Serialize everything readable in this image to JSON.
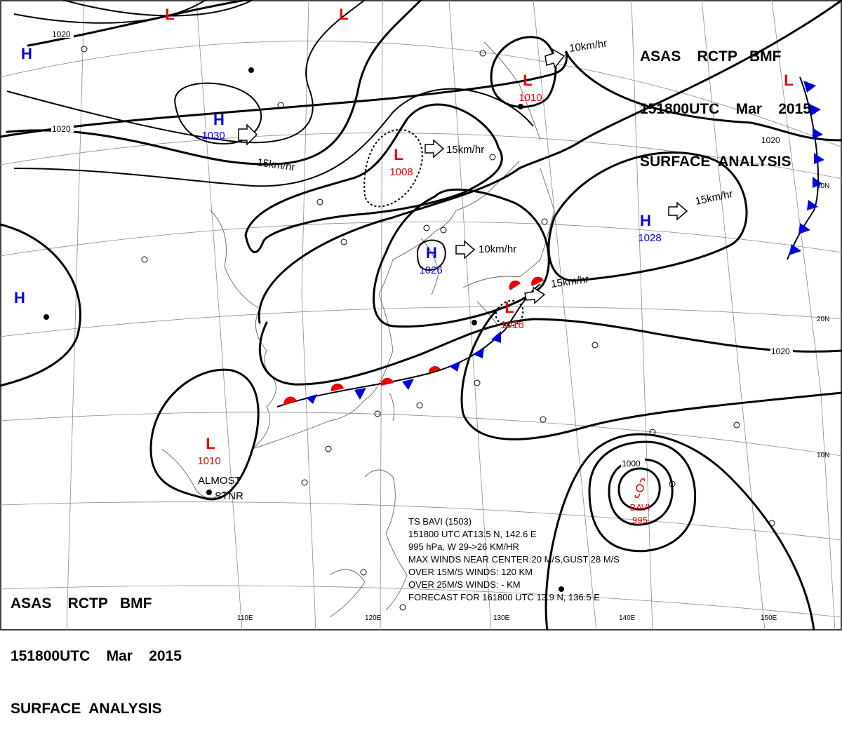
{
  "header_top": {
    "line1": "ASAS    RCTP   BMF",
    "line2": "151800UTC    Mar    2015",
    "line3": "SURFACE  ANALYSIS"
  },
  "header_bottom": {
    "line1": "ASAS    RCTP   BMF",
    "line2": "151800UTC    Mar    2015",
    "line3": "SURFACE  ANALYSIS"
  },
  "colors": {
    "high": "#0000dd",
    "low": "#ee0000",
    "isobar": "#000000",
    "warm_front": "#ee0000",
    "cold_front": "#0000dd"
  },
  "pressure_centers": [
    {
      "type": "H",
      "value": "1030",
      "color": "#0000dd"
    },
    {
      "type": "H",
      "value": "1026",
      "color": "#0000dd"
    },
    {
      "type": "H",
      "value": "1028",
      "color": "#0000dd"
    },
    {
      "type": "H",
      "value": "",
      "color": "#0000dd"
    },
    {
      "type": "H",
      "value": "",
      "color": "#0000dd"
    },
    {
      "type": "L",
      "value": "1008",
      "color": "#ee0000"
    },
    {
      "type": "L",
      "value": "1010",
      "color": "#ee0000"
    },
    {
      "type": "L",
      "value": "1016",
      "color": "#ee0000"
    },
    {
      "type": "L",
      "value": "1010",
      "color": "#ee0000"
    },
    {
      "type": "L",
      "value": "",
      "color": "#ee0000"
    },
    {
      "type": "L",
      "value": "",
      "color": "#ee0000"
    },
    {
      "type": "L",
      "value": "",
      "color": "#ee0000"
    }
  ],
  "movements": [
    "15km/hr",
    "15km/hr",
    "10km/hr",
    "10km/hr",
    "15km/hr",
    "15km/hr"
  ],
  "isobar_labels": [
    "1020",
    "1020",
    "1020",
    "1020",
    "1000"
  ],
  "storm": {
    "name": "BAVI",
    "pressure": "995"
  },
  "notes": {
    "almost": "ALMOST",
    "stnr": "STNR"
  },
  "longitude_labels": [
    "110E",
    "120E",
    "130E",
    "140E",
    "150E"
  ],
  "latitude_labels": [
    "30N",
    "20N",
    "10N"
  ],
  "advisory": [
    "TS  BAVI  (1503)",
    "151800 UTC  AT13.5 N, 142.6 E",
    "995 hPa, W  29->26 KM/HR",
    "MAX WINDS NEAR CENTER:20 M/S,GUST 28 M/S",
    "OVER 15M/S WINDS: 120 KM",
    "OVER 25M/S WINDS: - KM",
    "FORECAST FOR 161800 UTC 13.9 N, 136.5 E"
  ]
}
